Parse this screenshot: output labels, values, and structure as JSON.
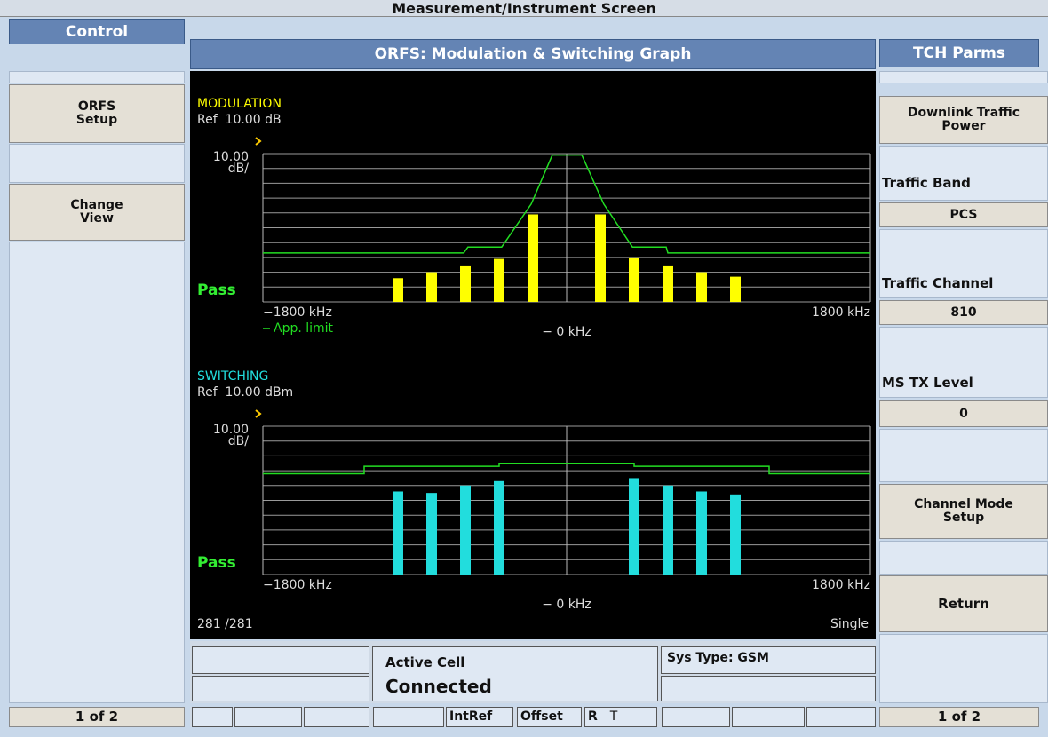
{
  "title": "Measurement/Instrument Screen",
  "left_panel": {
    "header": "Control",
    "softkeys": [
      "ORFS\nSetup",
      "Change\nView"
    ],
    "page": "1 of 2"
  },
  "right_panel": {
    "header": "TCH Parms",
    "softkey_top": "Downlink Traffic\nPower",
    "fields": [
      {
        "label": "Traffic Band",
        "value": "PCS"
      },
      {
        "label": "Traffic Channel",
        "value": "810"
      },
      {
        "label": "MS TX Level",
        "value": "0"
      }
    ],
    "softkeys": [
      "Channel Mode\nSetup",
      "Return"
    ],
    "page": "1 of 2"
  },
  "graph_panel": {
    "header": "ORFS: Modulation & Switching Graph",
    "footer_left": "281 /281",
    "footer_right": "Single",
    "graphs": [
      {
        "type": "bar",
        "title": "MODULATION",
        "ref": "Ref  10.00 dB",
        "scale": "10.00\ndB/",
        "status": "Pass",
        "xlim": [
          -1800,
          1800
        ],
        "xticks": [
          {
            "value": -1800,
            "label": "−1800 kHz"
          },
          {
            "value": 0,
            "label": "− 0 kHz"
          },
          {
            "value": 1800,
            "label": "1800 kHz"
          }
        ],
        "ylim": [
          -90,
          10
        ],
        "yticks": [
          -90,
          -80,
          -70,
          -60,
          -50,
          -40,
          -30,
          -20,
          -10,
          0,
          10
        ],
        "x": [
          -1000,
          -800,
          -600,
          -400,
          -200,
          200,
          400,
          600,
          800,
          1000
        ],
        "values": [
          -74,
          -70,
          -66,
          -61,
          -31,
          -31,
          -60,
          -66,
          -70,
          -73
        ],
        "color": "#ffff00",
        "limit": {
          "name": "App. limit",
          "color": "#22dd22",
          "x": [
            -1800,
            -610,
            -585,
            -385,
            -210,
            -85,
            90,
            220,
            390,
            590,
            600,
            1800
          ],
          "values": [
            -57,
            -57,
            -53,
            -53,
            -24,
            9,
            9,
            -24,
            -53,
            -53,
            -57,
            -57
          ]
        }
      },
      {
        "type": "bar",
        "title": "SWITCHING",
        "ref": "Ref  10.00 dBm",
        "scale": "10.00\ndB/",
        "status": "Pass",
        "xlim": [
          -1800,
          1800
        ],
        "xticks": [
          {
            "value": -1800,
            "label": "−1800 kHz"
          },
          {
            "value": 0,
            "label": "− 0 kHz"
          },
          {
            "value": 1800,
            "label": "1800 kHz"
          }
        ],
        "ylim": [
          -90,
          10
        ],
        "yticks": [
          -90,
          -80,
          -70,
          -60,
          -50,
          -40,
          -30,
          -20,
          -10,
          0,
          10
        ],
        "x": [
          -1000,
          -800,
          -600,
          -400,
          400,
          600,
          800,
          1000
        ],
        "values": [
          -34,
          -35,
          -30,
          -27,
          -25,
          -30,
          -34,
          -36
        ],
        "color": "#22dddd",
        "limit": {
          "color": "#22dd22",
          "x": [
            -1800,
            -1200,
            -1200,
            -400,
            -400,
            400,
            400,
            1200,
            1200,
            1800
          ],
          "values": [
            -22,
            -22,
            -17,
            -17,
            -15,
            -15,
            -17,
            -17,
            -22,
            -22
          ]
        }
      }
    ]
  },
  "status": {
    "active_cell_label": "Active Cell",
    "active_cell_value": "Connected",
    "sys_type": "Sys Type: GSM",
    "indicators": [
      "IntRef",
      "Offset",
      "R",
      "T"
    ]
  }
}
